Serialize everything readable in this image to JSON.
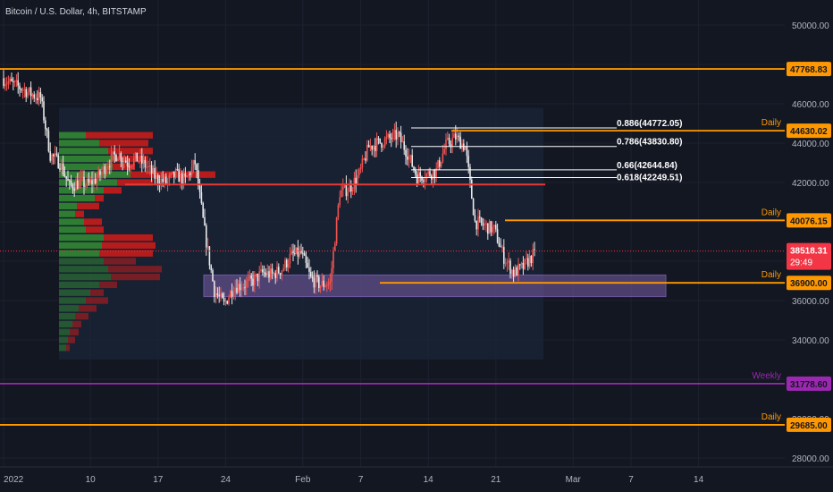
{
  "title": "Bitcoin / U.S. Dollar, 4h, BITSTAMP",
  "colors": {
    "background": "#131722",
    "up": "#ef5350",
    "down": "#e8e8e8",
    "orange": "#ff9800",
    "red_line": "#e53935",
    "purple": "#9c27b0",
    "price_tag": "#f23645",
    "vp_up": "#2e7d32",
    "vp_down": "#b71c1c"
  },
  "chart_data": {
    "type": "candlestick",
    "y_axis": {
      "min": 27000,
      "max": 51000,
      "ticks": [
        28000,
        30000,
        32000,
        34000,
        36000,
        38000,
        40000,
        42000,
        44000,
        46000,
        48000,
        50000
      ],
      "tick_labels": [
        "28000.00",
        "30000.00",
        "32000.00",
        "34000.00",
        "36000.00",
        "38000.00",
        "40000.00",
        "42000.00",
        "44000.00",
        "46000.00",
        "48000.00",
        "50000.00"
      ]
    },
    "x_axis": {
      "ticks": [
        {
          "label": "2022",
          "day": 0
        },
        {
          "label": "10",
          "day": 9
        },
        {
          "label": "17",
          "day": 16
        },
        {
          "label": "24",
          "day": 23
        },
        {
          "label": "Feb",
          "day": 31
        },
        {
          "label": "7",
          "day": 37
        },
        {
          "label": "14",
          "day": 44
        },
        {
          "label": "21",
          "day": 51
        },
        {
          "label": "Mar",
          "day": 59
        },
        {
          "label": "7",
          "day": 65
        },
        {
          "label": "14",
          "day": 72
        }
      ],
      "day_end": 78
    },
    "price_path": [
      [
        0,
        47300
      ],
      [
        1,
        47000
      ],
      [
        2,
        46800
      ],
      [
        3,
        46500
      ],
      [
        4,
        46300
      ],
      [
        5,
        43400
      ],
      [
        6,
        43000
      ],
      [
        7,
        41800
      ],
      [
        8,
        42000
      ],
      [
        9,
        41900
      ],
      [
        10,
        42300
      ],
      [
        11,
        43000
      ],
      [
        12,
        43500
      ],
      [
        13,
        43000
      ],
      [
        14,
        43200
      ],
      [
        15,
        42800
      ],
      [
        16,
        42200
      ],
      [
        17,
        42000
      ],
      [
        18,
        42400
      ],
      [
        19,
        42100
      ],
      [
        20,
        43000
      ],
      [
        21,
        39500
      ],
      [
        22,
        36500
      ],
      [
        23,
        35800
      ],
      [
        24,
        36700
      ],
      [
        25,
        36800
      ],
      [
        26,
        37000
      ],
      [
        27,
        37400
      ],
      [
        28,
        37300
      ],
      [
        29,
        37600
      ],
      [
        30,
        38300
      ],
      [
        31,
        38400
      ],
      [
        32,
        37100
      ],
      [
        33,
        36800
      ],
      [
        34,
        36900
      ],
      [
        35,
        41500
      ],
      [
        36,
        41700
      ],
      [
        37,
        42400
      ],
      [
        38,
        43800
      ],
      [
        39,
        44000
      ],
      [
        40,
        44200
      ],
      [
        41,
        44400
      ],
      [
        42,
        43500
      ],
      [
        43,
        42300
      ],
      [
        44,
        42400
      ],
      [
        45,
        42600
      ],
      [
        46,
        43900
      ],
      [
        47,
        44300
      ],
      [
        48,
        43800
      ],
      [
        49,
        40000
      ],
      [
        50,
        39800
      ],
      [
        51,
        39600
      ],
      [
        52,
        38200
      ],
      [
        53,
        37400
      ],
      [
        54,
        37700
      ],
      [
        55,
        38300
      ]
    ],
    "h_lines": [
      {
        "price": 47768.83,
        "label": "47768.83",
        "color": "#ff9800",
        "full": true,
        "tag": ""
      },
      {
        "price": 44630.02,
        "label": "44630.02",
        "color": "#ff9800",
        "full": false,
        "tag": "Daily"
      },
      {
        "price": 40076.15,
        "label": "40076.15",
        "color": "#ff9800",
        "full": false,
        "tag": "Daily"
      },
      {
        "price": 36900.0,
        "label": "36900.00",
        "color": "#ff9800",
        "full": false,
        "tag": "Daily"
      },
      {
        "price": 31778.6,
        "label": "31778.60",
        "color": "#9c27b0",
        "full": true,
        "tag": "Weekly"
      },
      {
        "price": 29685.0,
        "label": "29685.00",
        "color": "#ff9800",
        "full": true,
        "tag": "Daily"
      }
    ],
    "fib_levels": [
      {
        "price": 44772.05,
        "label": "0.886(44772.05)"
      },
      {
        "price": 43830.8,
        "label": "0.786(43830.80)"
      },
      {
        "price": 42644.84,
        "label": "0.66(42644.84)"
      },
      {
        "price": 42249.51,
        "label": "0.618(42249.51)"
      }
    ],
    "red_level": 41900,
    "zone": {
      "top": 37300,
      "bottom": 36200
    },
    "current_price": {
      "value": "38518.31",
      "countdown": "29:49",
      "price": 38518.31
    },
    "volume_profile": [
      {
        "price": 44400,
        "up": 30,
        "down": 75
      },
      {
        "price": 44000,
        "up": 45,
        "down": 55
      },
      {
        "price": 43600,
        "up": 55,
        "down": 50
      },
      {
        "price": 43200,
        "up": 60,
        "down": 40
      },
      {
        "price": 42800,
        "up": 60,
        "down": 25
      },
      {
        "price": 42400,
        "up": 80,
        "down": 95
      },
      {
        "price": 42000,
        "up": 65,
        "down": 40
      },
      {
        "price": 41600,
        "up": 50,
        "down": 20
      },
      {
        "price": 41200,
        "up": 40,
        "down": 10
      },
      {
        "price": 40800,
        "up": 20,
        "down": 25
      },
      {
        "price": 40400,
        "up": 18,
        "down": 10
      },
      {
        "price": 40000,
        "up": 28,
        "down": 20
      },
      {
        "price": 39600,
        "up": 30,
        "down": 20
      },
      {
        "price": 39200,
        "up": 50,
        "down": 55
      },
      {
        "price": 38800,
        "up": 48,
        "down": 60
      },
      {
        "price": 38400,
        "up": 45,
        "down": 60
      },
      {
        "price": 38000,
        "up": 50,
        "down": 36
      },
      {
        "price": 37600,
        "up": 55,
        "down": 60
      },
      {
        "price": 37200,
        "up": 58,
        "down": 55
      },
      {
        "price": 36800,
        "up": 45,
        "down": 20
      },
      {
        "price": 36400,
        "up": 35,
        "down": 15
      },
      {
        "price": 36000,
        "up": 30,
        "down": 25
      },
      {
        "price": 35600,
        "up": 22,
        "down": 20
      },
      {
        "price": 35200,
        "up": 18,
        "down": 15
      },
      {
        "price": 34800,
        "up": 15,
        "down": 10
      },
      {
        "price": 34400,
        "up": 12,
        "down": 10
      },
      {
        "price": 34000,
        "up": 10,
        "down": 8
      },
      {
        "price": 33600,
        "up": 8,
        "down": 4
      }
    ]
  }
}
